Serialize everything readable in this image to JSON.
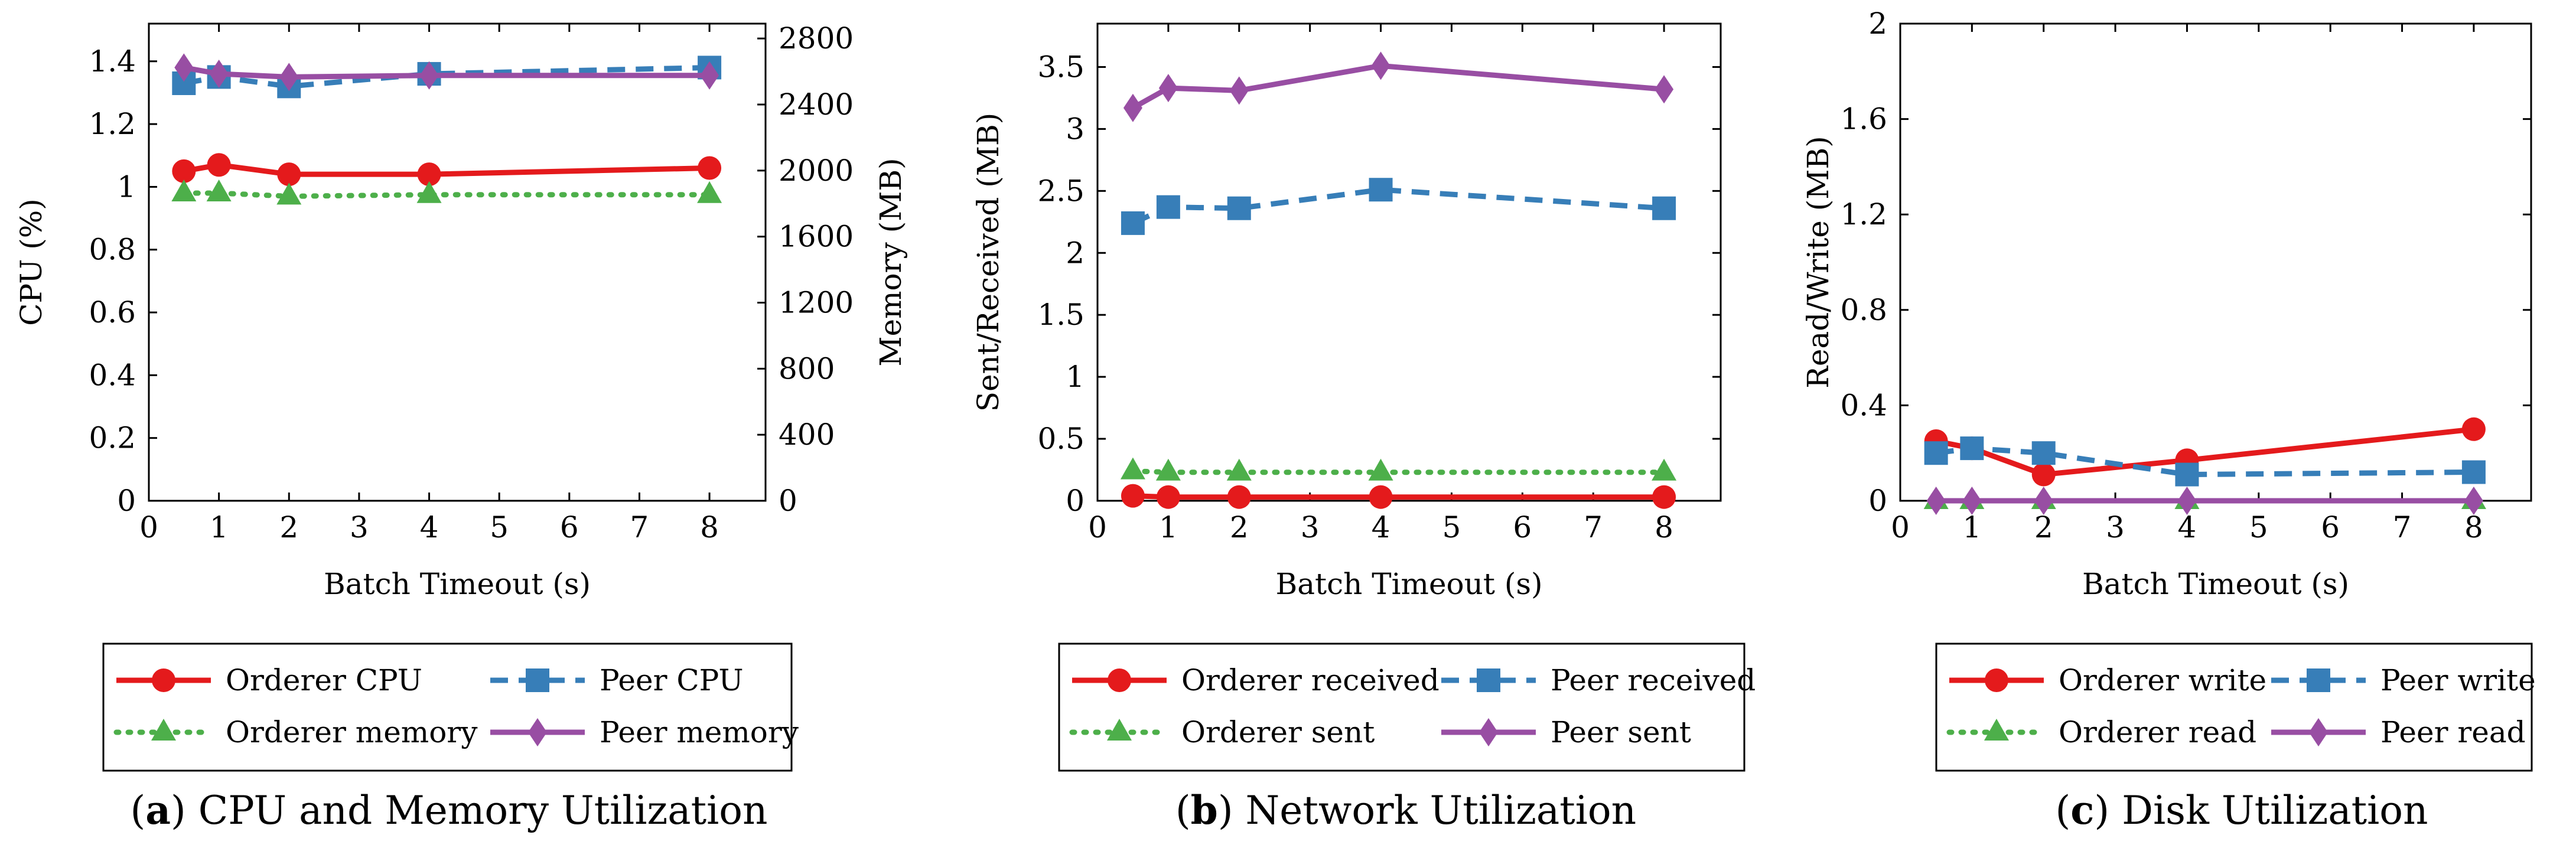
{
  "chart_data": [
    {
      "id": "a",
      "type": "line",
      "caption_letter": "a",
      "caption_text": "CPU and Memory Utilization",
      "xlabel": "Batch Timeout (s)",
      "ylabel": "CPU (%)",
      "ylabel_right": "Memory (MB)",
      "xlim": [
        0,
        8.8
      ],
      "ylim": [
        0,
        1.52
      ],
      "ylim_right": [
        0,
        2890
      ],
      "x_ticks": [
        "0",
        "1",
        "2",
        "3",
        "4",
        "5",
        "6",
        "7",
        "8"
      ],
      "y_ticks": [
        "0",
        "0.2",
        "0.4",
        "0.6",
        "0.8",
        "1",
        "1.2",
        "1.4"
      ],
      "y_ticks_right": [
        "0",
        "400",
        "800",
        "1200",
        "1600",
        "2000",
        "2400",
        "2800"
      ],
      "x": [
        0.5,
        1,
        2,
        4,
        8
      ],
      "series": [
        {
          "name": "Orderer CPU",
          "axis": "left",
          "color": "#e41a1c",
          "style": "solid",
          "marker": "circle",
          "values": [
            1.05,
            1.07,
            1.04,
            1.04,
            1.06
          ]
        },
        {
          "name": "Peer CPU",
          "axis": "left",
          "color": "#377eb8",
          "style": "dashed",
          "marker": "square",
          "values": [
            1.33,
            1.35,
            1.32,
            1.36,
            1.38
          ]
        },
        {
          "name": "Orderer memory",
          "axis": "left",
          "color": "#4daf4a",
          "style": "dotted",
          "marker": "triangle",
          "values": [
            0.98,
            0.98,
            0.97,
            0.975,
            0.975
          ]
        },
        {
          "name": "Peer memory",
          "axis": "left",
          "color": "#984ea3",
          "style": "solid",
          "marker": "diamond",
          "values": [
            1.38,
            1.36,
            1.35,
            1.355,
            1.355
          ]
        }
      ]
    },
    {
      "id": "b",
      "type": "line",
      "caption_letter": "b",
      "caption_text": "Network Utilization",
      "xlabel": "Batch Timeout (s)",
      "ylabel": "Sent/Received (MB)",
      "xlim": [
        0,
        8.8
      ],
      "ylim": [
        0,
        3.85
      ],
      "x_ticks": [
        "0",
        "1",
        "2",
        "3",
        "4",
        "5",
        "6",
        "7",
        "8"
      ],
      "y_ticks": [
        "0",
        "0.5",
        "1",
        "1.5",
        "2",
        "2.5",
        "3",
        "3.5"
      ],
      "x": [
        0.5,
        1,
        2,
        4,
        8
      ],
      "series": [
        {
          "name": "Orderer received",
          "color": "#e41a1c",
          "style": "solid",
          "marker": "circle",
          "values": [
            0.04,
            0.03,
            0.03,
            0.03,
            0.03
          ]
        },
        {
          "name": "Peer received",
          "color": "#377eb8",
          "style": "dashed",
          "marker": "square",
          "values": [
            2.24,
            2.37,
            2.36,
            2.51,
            2.36
          ]
        },
        {
          "name": "Orderer sent",
          "color": "#4daf4a",
          "style": "dotted",
          "marker": "triangle",
          "values": [
            0.24,
            0.23,
            0.23,
            0.23,
            0.23
          ]
        },
        {
          "name": "Peer sent",
          "color": "#984ea3",
          "style": "solid",
          "marker": "diamond",
          "values": [
            3.17,
            3.33,
            3.31,
            3.51,
            3.32
          ]
        }
      ]
    },
    {
      "id": "c",
      "type": "line",
      "caption_letter": "c",
      "caption_text": "Disk Utilization",
      "xlabel": "Batch Timeout (s)",
      "ylabel": "Read/Write (MB)",
      "xlim": [
        0,
        8.8
      ],
      "ylim": [
        0,
        2
      ],
      "x_ticks": [
        "0",
        "1",
        "2",
        "3",
        "4",
        "5",
        "6",
        "7",
        "8"
      ],
      "y_ticks": [
        "0",
        "0.4",
        "0.8",
        "1.2",
        "1.6",
        "2"
      ],
      "x": [
        0.5,
        1,
        2,
        4,
        8
      ],
      "series": [
        {
          "name": "Orderer write",
          "color": "#e41a1c",
          "style": "solid",
          "marker": "circle",
          "values": [
            0.25,
            0.22,
            0.11,
            0.17,
            0.3
          ]
        },
        {
          "name": "Peer write",
          "color": "#377eb8",
          "style": "dashed",
          "marker": "square",
          "values": [
            0.2,
            0.22,
            0.2,
            0.11,
            0.12
          ]
        },
        {
          "name": "Orderer read",
          "color": "#4daf4a",
          "style": "dotted",
          "marker": "triangle",
          "values": [
            0,
            0,
            0,
            0,
            0
          ]
        },
        {
          "name": "Peer read",
          "color": "#984ea3",
          "style": "solid",
          "marker": "diamond",
          "values": [
            0,
            0,
            0,
            0,
            0
          ]
        }
      ]
    }
  ]
}
